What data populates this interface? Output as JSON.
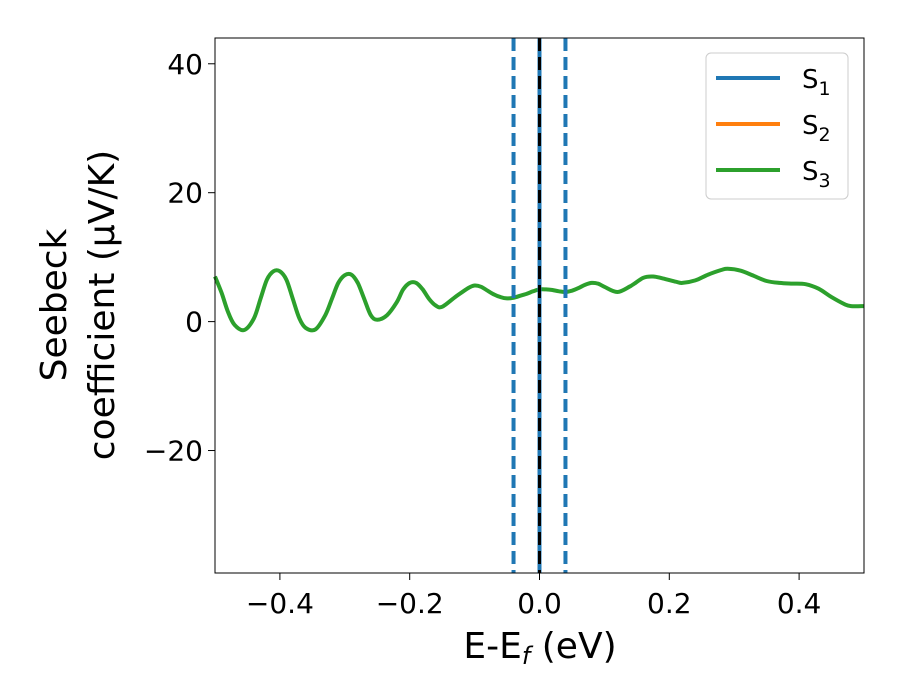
{
  "chart_data": {
    "type": "line",
    "xlabel": "E-E",
    "xlabel_sub": "f",
    "xlabel_unit": " (eV)",
    "ylabel_line1": "Seebeck",
    "ylabel_line2": "coefficient  (μV/K)",
    "xlim": [
      -0.5,
      0.5
    ],
    "ylim": [
      -39,
      44
    ],
    "xticks": [
      -0.4,
      -0.2,
      0.0,
      0.2,
      0.4
    ],
    "xtick_labels": [
      "−0.4",
      "−0.2",
      "0.0",
      "0.2",
      "0.4"
    ],
    "yticks": [
      -20,
      0,
      20,
      40
    ],
    "ytick_labels": [
      "−20",
      "0",
      "20",
      "40"
    ],
    "grid": false,
    "legend_position": "top-right",
    "vlines": [
      {
        "x": -0.04,
        "style": "dashed",
        "color": "#1f77b4"
      },
      {
        "x": 0.04,
        "style": "dashed",
        "color": "#1f77b4"
      },
      {
        "x": 0.0,
        "style": "solid",
        "color": "#1f77b4"
      },
      {
        "x": 0.0,
        "style": "dashed",
        "color": "#000000"
      }
    ],
    "series": [
      {
        "name": "S",
        "sub": "1",
        "color": "#1f77b4"
      },
      {
        "name": "S",
        "sub": "2",
        "color": "#ff7f0e"
      },
      {
        "name": "S",
        "sub": "3",
        "color": "#2ca02c",
        "x": [
          -0.5,
          -0.49,
          -0.48,
          -0.47,
          -0.455,
          -0.44,
          -0.43,
          -0.42,
          -0.41,
          -0.4,
          -0.39,
          -0.38,
          -0.37,
          -0.36,
          -0.345,
          -0.33,
          -0.32,
          -0.31,
          -0.3,
          -0.29,
          -0.28,
          -0.27,
          -0.26,
          -0.25,
          -0.235,
          -0.22,
          -0.21,
          -0.2,
          -0.19,
          -0.18,
          -0.17,
          -0.16,
          -0.15,
          -0.13,
          -0.11,
          -0.1,
          -0.09,
          -0.08,
          -0.07,
          -0.06,
          -0.05,
          -0.04,
          -0.03,
          -0.02,
          -0.01,
          0.0,
          0.01,
          0.02,
          0.03,
          0.04,
          0.05,
          0.06,
          0.07,
          0.08,
          0.09,
          0.1,
          0.12,
          0.14,
          0.16,
          0.175,
          0.19,
          0.21,
          0.22,
          0.24,
          0.26,
          0.28,
          0.29,
          0.31,
          0.33,
          0.35,
          0.37,
          0.39,
          0.41,
          0.43,
          0.45,
          0.47,
          0.48,
          0.5
        ],
        "values": [
          7.0,
          4.5,
          1.5,
          -0.5,
          -1.3,
          0.5,
          3.5,
          6.5,
          7.8,
          7.8,
          6.5,
          3.5,
          0.5,
          -1.0,
          -1.2,
          1.0,
          3.5,
          6.0,
          7.2,
          7.3,
          6.0,
          3.5,
          1.0,
          0.3,
          1.0,
          3.0,
          5.0,
          6.0,
          6.0,
          5.0,
          3.5,
          2.5,
          2.3,
          3.8,
          5.2,
          5.6,
          5.4,
          4.8,
          4.2,
          3.8,
          3.6,
          3.7,
          4.0,
          4.3,
          4.7,
          5.0,
          5.0,
          4.9,
          4.7,
          4.6,
          4.8,
          5.2,
          5.7,
          6.0,
          5.9,
          5.4,
          4.6,
          5.5,
          6.8,
          7.0,
          6.7,
          6.2,
          6.0,
          6.4,
          7.3,
          8.0,
          8.2,
          7.9,
          7.1,
          6.3,
          6.0,
          5.9,
          5.8,
          5.1,
          3.8,
          2.7,
          2.4,
          2.4
        ]
      }
    ]
  }
}
